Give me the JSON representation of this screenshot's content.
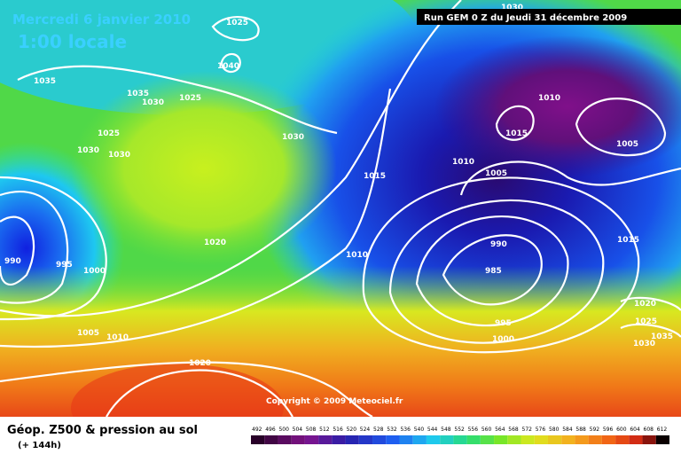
{
  "header": {
    "title": "Mercredi 6 janvier 2010",
    "time": "1:00 locale",
    "run": "Run GEM 0 Z du Jeudi 31 décembre 2009"
  },
  "copyright": "Copyright © 2009 Meteociel.fr",
  "footer": {
    "title": "Géop. Z500 & pression au sol",
    "lead": "(+ 144h)"
  },
  "legend": {
    "labels": [
      "492",
      "496",
      "500",
      "504",
      "508",
      "512",
      "516",
      "520",
      "524",
      "528",
      "532",
      "536",
      "540",
      "544",
      "548",
      "552",
      "556",
      "560",
      "564",
      "568",
      "572",
      "576",
      "580",
      "584",
      "588",
      "592",
      "596",
      "600",
      "604",
      "608",
      "612"
    ]
  },
  "isobars": [
    "1030",
    "1025",
    "1040",
    "1035",
    "1035",
    "1030",
    "1025",
    "1025",
    "1030",
    "1030",
    "1030",
    "1015",
    "1010",
    "1005",
    "1010",
    "1015",
    "1005",
    "1020",
    "990",
    "995",
    "1000",
    "1010",
    "990",
    "985",
    "995",
    "1000",
    "1015",
    "1020",
    "1025",
    "1035",
    "1030",
    "1005",
    "1010",
    "1020"
  ]
}
